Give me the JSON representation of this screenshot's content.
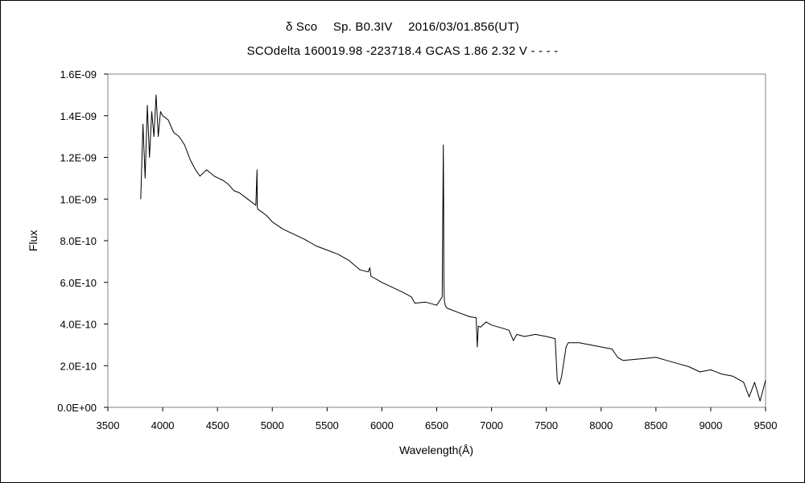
{
  "chart_data": {
    "type": "line",
    "title": "δ Sco　 Sp. B0.3IV　 2016/03/01.856(UT)",
    "subtitle": "SCOdelta 160019.98 -223718.4 GCAS 1.86 2.32 V - - - -",
    "xlabel": "Wavelength(Å)",
    "ylabel": "Flux",
    "xlim": [
      3500,
      9500
    ],
    "ylim": [
      0,
      1.6e-09
    ],
    "x_ticks": [
      "3500",
      "4000",
      "4500",
      "5000",
      "5500",
      "6000",
      "6500",
      "7000",
      "7500",
      "8000",
      "8500",
      "9000",
      "9500"
    ],
    "y_ticks": [
      "0.0E+00",
      "2.0E-10",
      "4.0E-10",
      "6.0E-10",
      "8.0E-10",
      "1.0E-09",
      "1.2E-09",
      "1.4E-09",
      "1.6E-09"
    ],
    "grid": false,
    "legend": "none",
    "series": [
      {
        "color": "#000000",
        "x": [
          3800,
          3820,
          3840,
          3860,
          3880,
          3900,
          3920,
          3940,
          3960,
          3980,
          4000,
          4050,
          4100,
          4150,
          4200,
          4250,
          4300,
          4340,
          4400,
          4470,
          4550,
          4600,
          4650,
          4700,
          4750,
          4800,
          4850,
          4861,
          4863,
          4870,
          4900,
          4950,
          5000,
          5100,
          5200,
          5300,
          5400,
          5500,
          5600,
          5700,
          5800,
          5875,
          5890,
          5900,
          6000,
          6100,
          6200,
          6270,
          6300,
          6400,
          6500,
          6550,
          6560,
          6563,
          6565,
          6570,
          6580,
          6600,
          6700,
          6800,
          6860,
          6870,
          6880,
          6900,
          6950,
          7000,
          7100,
          7160,
          7200,
          7230,
          7300,
          7400,
          7500,
          7580,
          7600,
          7620,
          7640,
          7680,
          7700,
          7800,
          7900,
          8000,
          8100,
          8150,
          8200,
          8300,
          8400,
          8500,
          8600,
          8700,
          8800,
          8900,
          9000,
          9100,
          9200,
          9300,
          9350,
          9400,
          9450,
          9500
        ],
        "y": [
          1e-09,
          1.36e-09,
          1.1e-09,
          1.45e-09,
          1.2e-09,
          1.42e-09,
          1.3e-09,
          1.5e-09,
          1.3e-09,
          1.42e-09,
          1.4e-09,
          1.38e-09,
          1.32e-09,
          1.3e-09,
          1.26e-09,
          1.19e-09,
          1.14e-09,
          1.11e-09,
          1.14e-09,
          1.11e-09,
          1.09e-09,
          1.07e-09,
          1.04e-09,
          1.03e-09,
          1.01e-09,
          9.9e-10,
          9.7e-10,
          1.14e-09,
          9.6e-10,
          9.5e-10,
          9.4e-10,
          9.2e-10,
          8.9e-10,
          8.55e-10,
          8.3e-10,
          8.05e-10,
          7.75e-10,
          7.55e-10,
          7.35e-10,
          7.05e-10,
          6.6e-10,
          6.5e-10,
          6.7e-10,
          6.3e-10,
          6e-10,
          5.75e-10,
          5.5e-10,
          5.3e-10,
          5e-10,
          5.05e-10,
          4.9e-10,
          5.3e-10,
          1.26e-09,
          1e-09,
          6e-10,
          5.1e-10,
          4.85e-10,
          4.75e-10,
          4.55e-10,
          4.35e-10,
          4.3e-10,
          2.9e-10,
          3.9e-10,
          3.85e-10,
          4.1e-10,
          3.95e-10,
          3.8e-10,
          3.7e-10,
          3.2e-10,
          3.5e-10,
          3.4e-10,
          3.5e-10,
          3.4e-10,
          3.3e-10,
          1.3e-10,
          1.1e-10,
          1.5e-10,
          2.9e-10,
          3.1e-10,
          3.1e-10,
          3e-10,
          2.9e-10,
          2.8e-10,
          2.4e-10,
          2.25e-10,
          2.3e-10,
          2.35e-10,
          2.4e-10,
          2.25e-10,
          2.1e-10,
          1.95e-10,
          1.7e-10,
          1.8e-10,
          1.6e-10,
          1.5e-10,
          1.2e-10,
          5e-11,
          1.2e-10,
          3e-11,
          1.3e-10
        ]
      }
    ]
  }
}
